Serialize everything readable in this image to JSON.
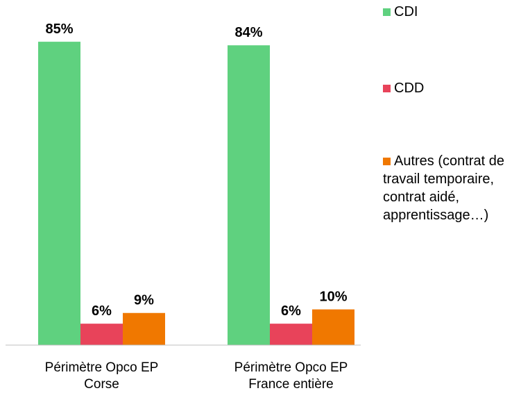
{
  "chart_data": {
    "type": "bar",
    "categories": [
      [
        "Périmètre Opco EP",
        "Corse"
      ],
      [
        "Périmètre Opco EP",
        "France entière"
      ]
    ],
    "series": [
      {
        "name": "CDI",
        "color": "#5fd17f",
        "values": [
          85,
          84
        ],
        "value_labels": [
          "85%",
          "84%"
        ]
      },
      {
        "name": "CDD",
        "color": "#e8435a",
        "values": [
          6,
          6
        ],
        "value_labels": [
          "6%",
          "6%"
        ]
      },
      {
        "name": "Autres (contrat de travail temporaire, contrat aidé, apprentissage…)",
        "color": "#f07800",
        "values": [
          9,
          10
        ],
        "value_labels": [
          "9%",
          "10%"
        ]
      }
    ]
  }
}
